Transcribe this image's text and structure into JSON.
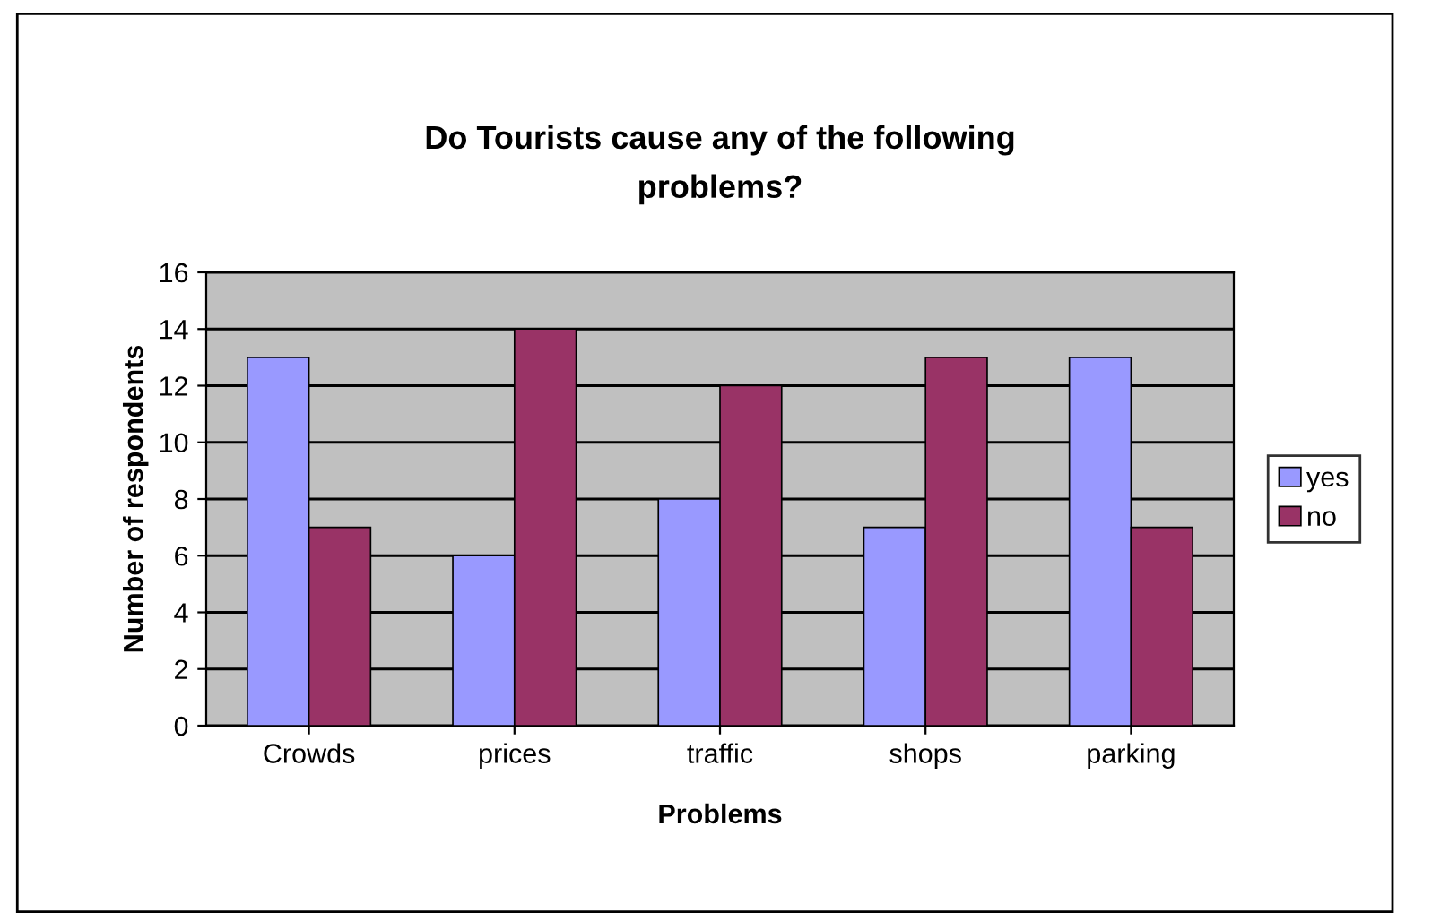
{
  "chart_data": {
    "type": "bar",
    "title": "Do Tourists cause any of the following\nproblems?",
    "xlabel": "Problems",
    "ylabel": "Number of respondents",
    "categories": [
      "Crowds",
      "prices",
      "traffic",
      "shops",
      "parking"
    ],
    "series": [
      {
        "name": "yes",
        "color": "#9999ff",
        "values": [
          13,
          6,
          8,
          7,
          13
        ]
      },
      {
        "name": "no",
        "color": "#993366",
        "values": [
          7,
          14,
          12,
          13,
          7
        ]
      }
    ],
    "ylim": [
      0,
      16
    ],
    "yticks": [
      0,
      2,
      4,
      6,
      8,
      10,
      12,
      14,
      16
    ],
    "grid": "y",
    "legend": "right"
  }
}
